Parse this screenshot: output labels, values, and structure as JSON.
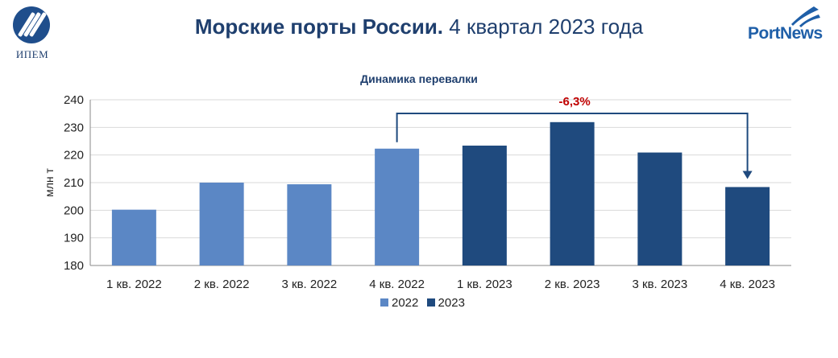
{
  "header": {
    "title_bold": "Морские порты России.",
    "title_rest": "4 квартал 2023 года",
    "left_logo_text": "ИПЕМ",
    "right_logo_text_a": "PortN",
    "right_logo_text_b": "ws"
  },
  "colors": {
    "series_2022": "#5b87c5",
    "series_2023": "#1f4a7e",
    "annotation_text": "#c00000",
    "annotation_line": "#1f4a7e",
    "title": "#1f3f6e"
  },
  "chart_data": {
    "type": "bar",
    "title": "Динамика перевалки",
    "ylabel": "млн т",
    "xlabel": "",
    "ylim": [
      180,
      240
    ],
    "yticks": [
      180,
      190,
      200,
      210,
      220,
      230,
      240
    ],
    "grid": true,
    "legend_position": "bottom",
    "categories": [
      "1 кв. 2022",
      "2 кв. 2022",
      "3 кв. 2022",
      "4 кв. 2022",
      "1 кв. 2023",
      "2 кв. 2023",
      "3 кв. 2023",
      "4 кв. 2023"
    ],
    "values": [
      200.2,
      210.0,
      209.4,
      222.3,
      223.4,
      231.9,
      220.9,
      208.4
    ],
    "series_of_bar": [
      "2022",
      "2022",
      "2022",
      "2022",
      "2023",
      "2023",
      "2023",
      "2023"
    ],
    "legend": [
      {
        "name": "2022",
        "color_key": "series_2022"
      },
      {
        "name": "2023",
        "color_key": "series_2023"
      }
    ],
    "annotation": {
      "text": "-6,3%",
      "from_category": "4 кв. 2022",
      "to_category": "4 кв. 2023"
    }
  }
}
